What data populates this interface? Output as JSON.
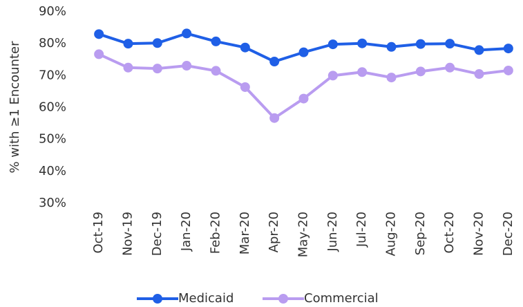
{
  "chart_data": {
    "type": "line",
    "y_label": "% with ≥1 Encounter",
    "categories": [
      "Oct-19",
      "Nov-19",
      "Dec-19",
      "Jan-20",
      "Feb-20",
      "Mar-20",
      "Apr-20",
      "May-20",
      "Jun-20",
      "Jul-20",
      "Aug-20",
      "Sep-20",
      "Oct-20",
      "Nov-20",
      "Dec-20"
    ],
    "series": [
      {
        "name": "Medicaid",
        "color": "#1f5fe6",
        "values": [
          83,
          80,
          80.2,
          83.2,
          80.7,
          78.8,
          74.4,
          77.3,
          79.8,
          80.1,
          79,
          79.9,
          80,
          78,
          78.5
        ]
      },
      {
        "name": "Commercial",
        "color": "#b99cf0",
        "values": [
          76.7,
          72.5,
          72.2,
          73.1,
          71.5,
          66.4,
          56.7,
          62.8,
          70,
          71.1,
          69.4,
          71.3,
          72.5,
          70.5,
          71.6
        ]
      }
    ],
    "ylim": [
      30,
      90
    ],
    "yticks": [
      {
        "value": 30,
        "label": "30%"
      },
      {
        "value": 40,
        "label": "40%"
      },
      {
        "value": 50,
        "label": "50%"
      },
      {
        "value": 60,
        "label": "60%"
      },
      {
        "value": 70,
        "label": "70%"
      },
      {
        "value": 80,
        "label": "80%"
      },
      {
        "value": 90,
        "label": "90%"
      }
    ],
    "grid": false,
    "legend": "bottom"
  }
}
